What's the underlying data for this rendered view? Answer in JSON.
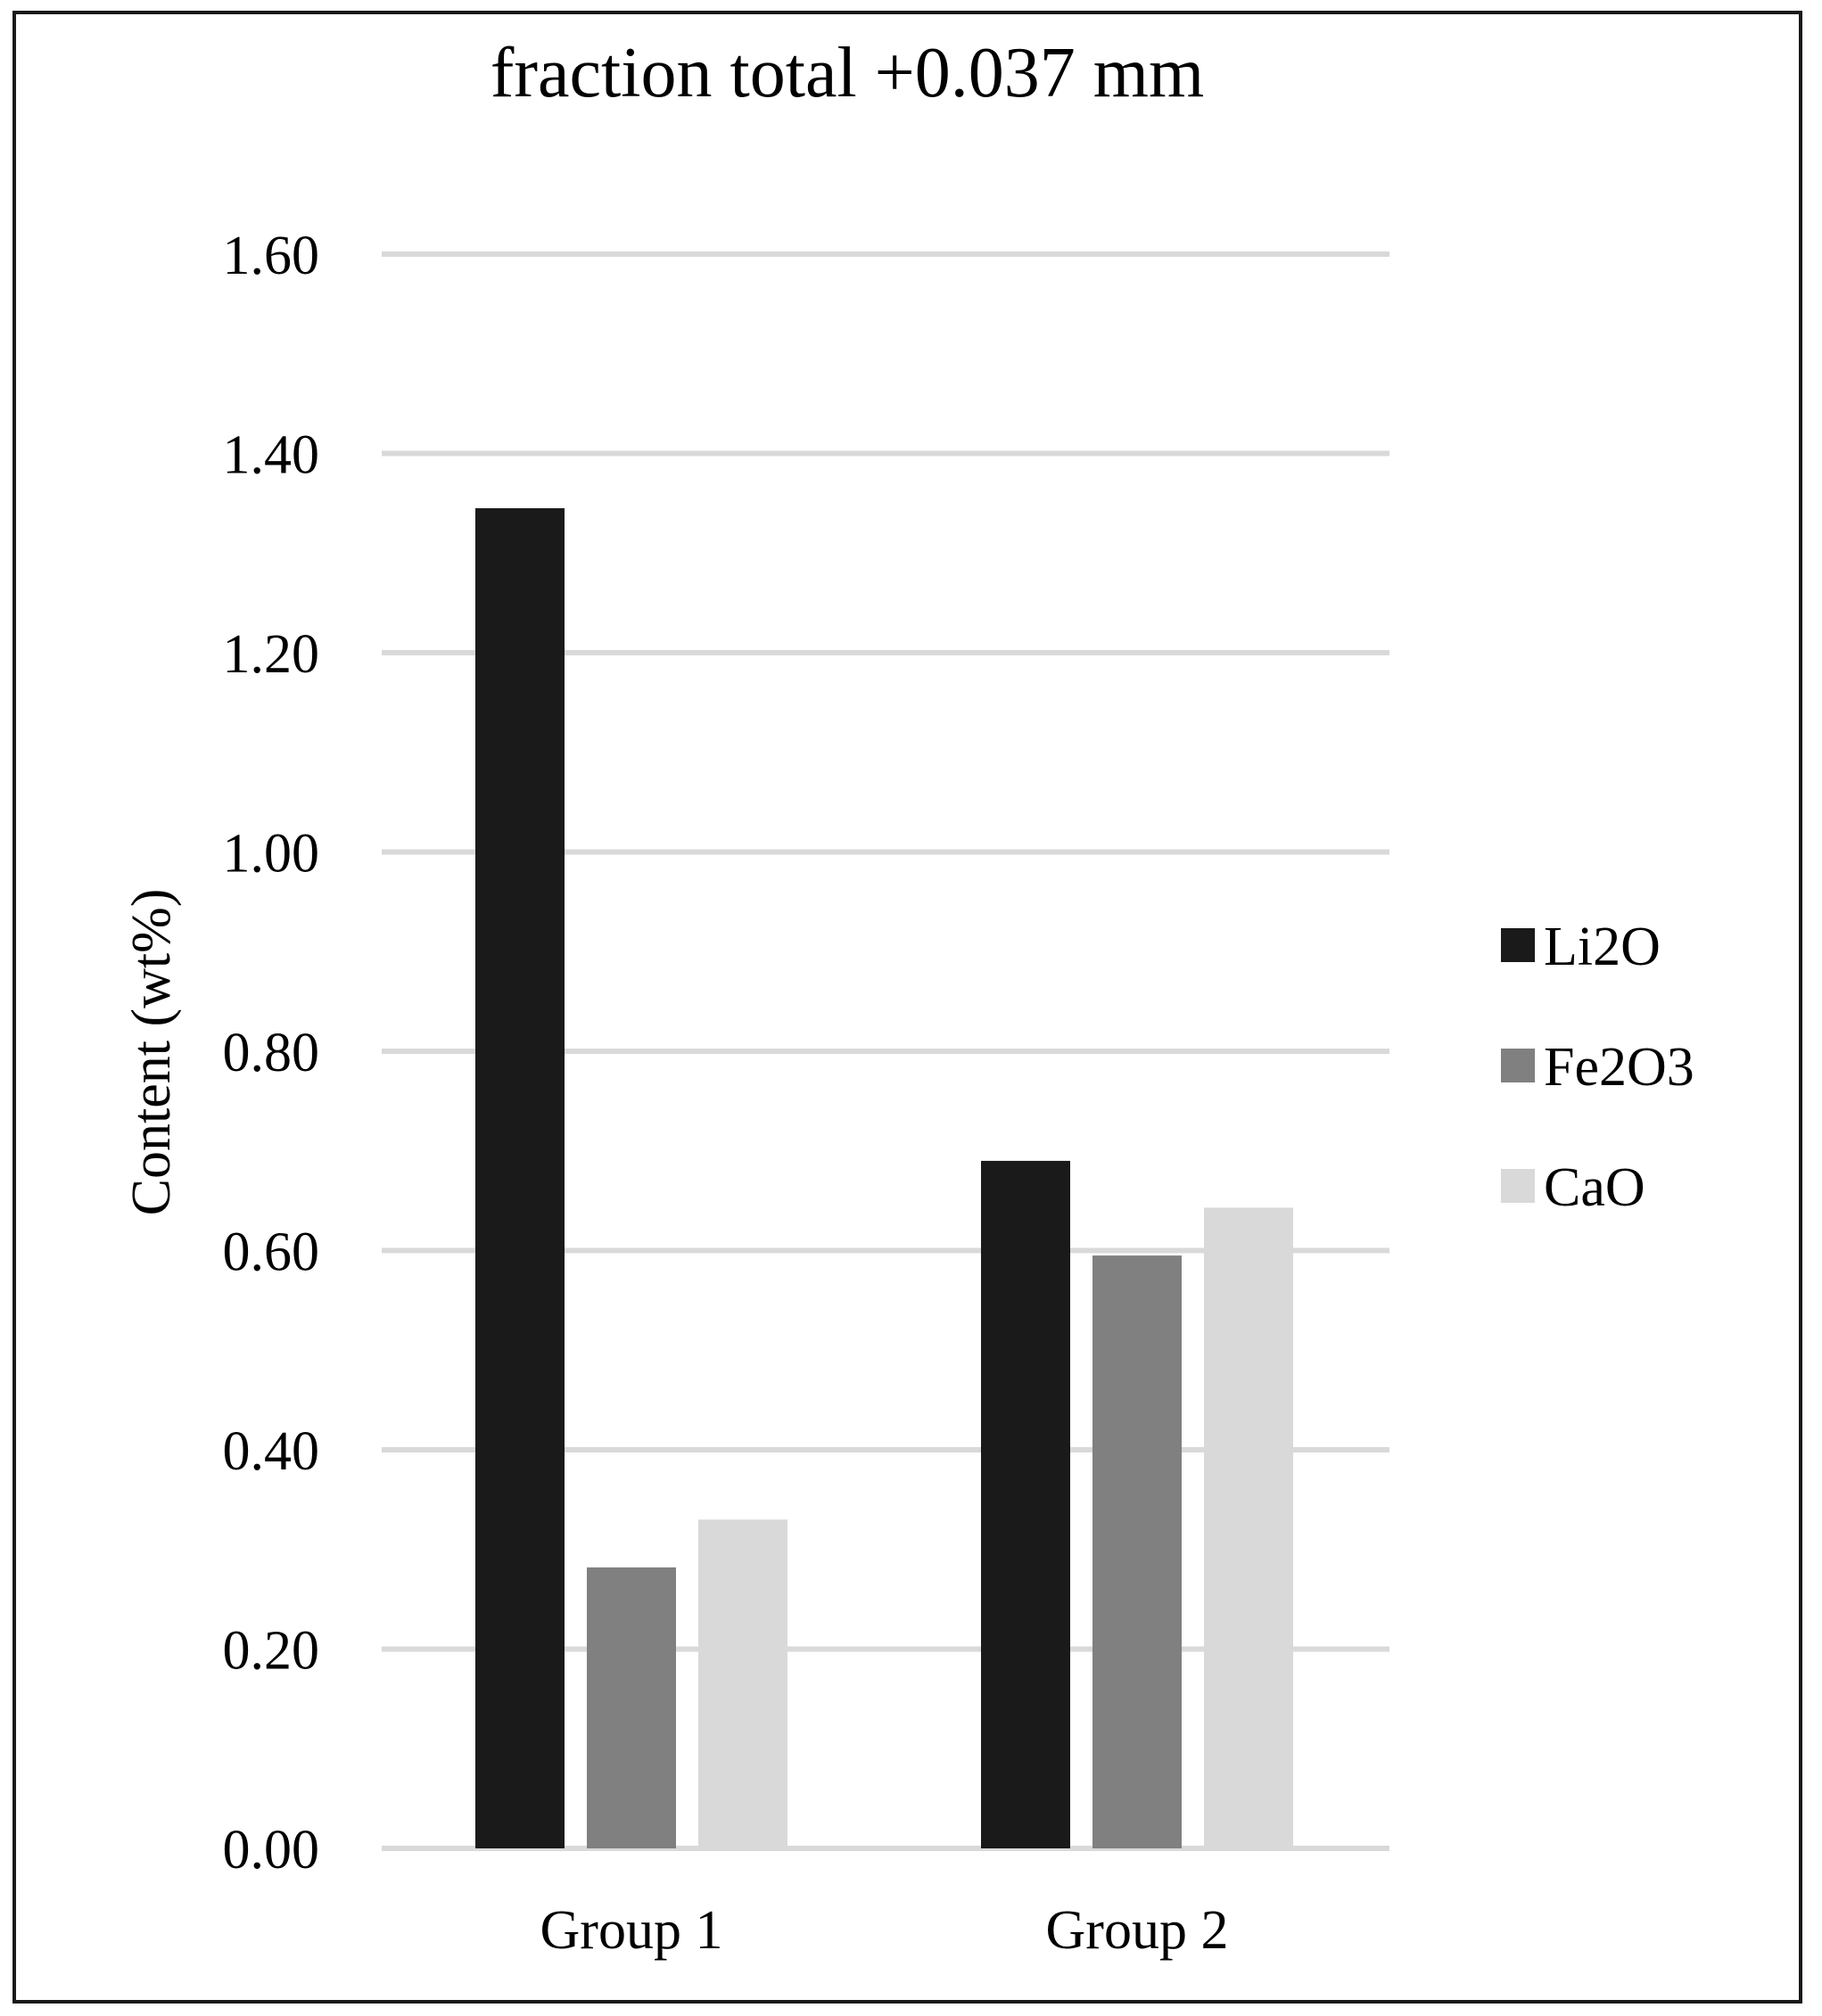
{
  "chart_data": {
    "type": "bar",
    "title": "fraction total +0.037 mm",
    "xlabel": "",
    "ylabel": "Content (wt%)",
    "ylim": [
      0,
      1.6
    ],
    "yticks": [
      "0.00",
      "0.20",
      "0.40",
      "0.60",
      "0.80",
      "1.00",
      "1.20",
      "1.40",
      "1.60"
    ],
    "tick_step": 0.2,
    "grid": true,
    "legend_position": "right",
    "categories": [
      "Group 1",
      "Group 2"
    ],
    "series": [
      {
        "name": "Li2O",
        "color": "#1a1a1a",
        "values": [
          1.345,
          0.69
        ]
      },
      {
        "name": "Fe2O3",
        "color": "#808080",
        "values": [
          0.282,
          0.595
        ]
      },
      {
        "name": "CaO",
        "color": "#d9d9d9",
        "values": [
          0.33,
          0.643
        ]
      }
    ],
    "gridline_color": "#d9d9d9"
  }
}
